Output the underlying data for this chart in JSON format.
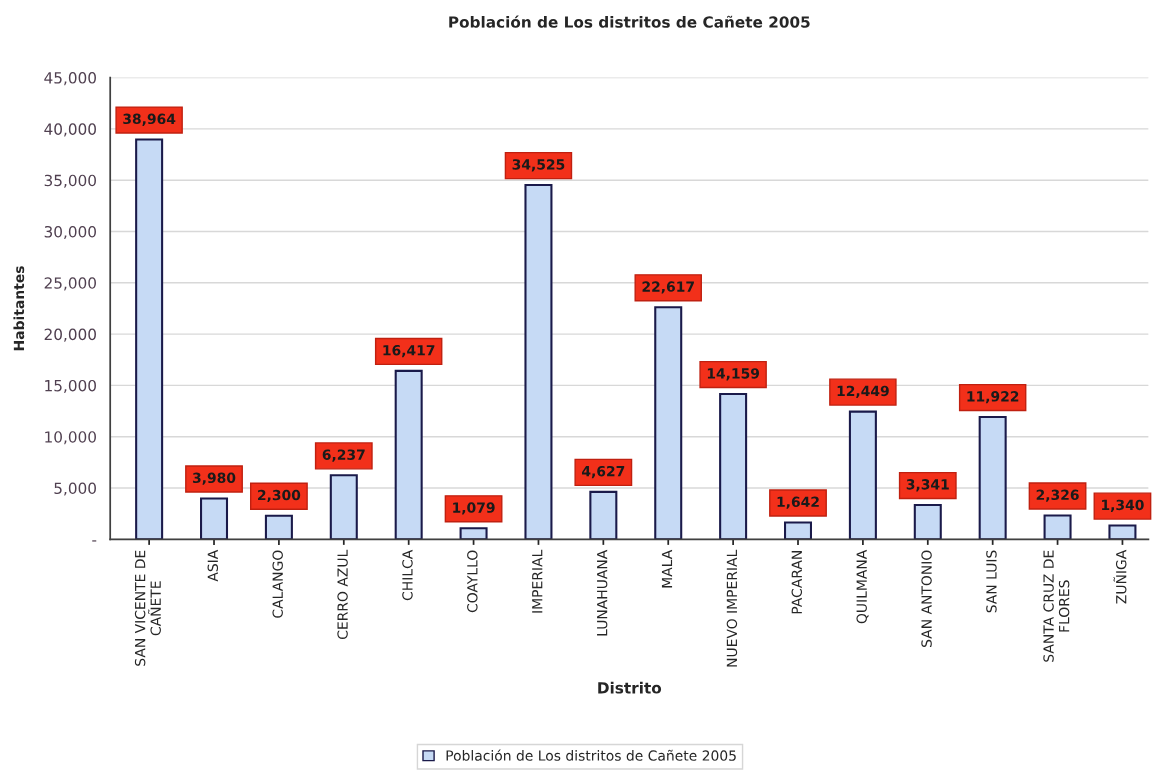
{
  "chart_data": {
    "type": "bar",
    "title": "Población de Los distritos de Cañete 2005",
    "xlabel": "Distrito",
    "ylabel": "Habitantes",
    "categories": [
      "SAN VICENTE DE\nCAÑETE",
      "ASIA",
      "CALANGO",
      "CERRO AZUL",
      "CHILCA",
      "COAYLLO",
      "IMPERIAL",
      "LUNAHUANA",
      "MALA",
      "NUEVO IMPERIAL",
      "PACARAN",
      "QUILMANA",
      "SAN ANTONIO",
      "SAN LUIS",
      "SANTA CRUZ DE\nFLORES",
      "ZUÑIGA"
    ],
    "series": [
      {
        "name": "Población de Los distritos de Cañete 2005",
        "color": "#c6daf5",
        "values": [
          38964,
          3980,
          2300,
          6237,
          16417,
          1079,
          34525,
          4627,
          22617,
          14159,
          1642,
          12449,
          3341,
          11922,
          2326,
          1340
        ],
        "value_labels": [
          "38,964",
          "3,980",
          "2,300",
          "6,237",
          "16,417",
          "1,079",
          "34,525",
          "4,627",
          "22,617",
          "14,159",
          "1,642",
          "12,449",
          "3,341",
          "11,922",
          "2,326",
          "1,340"
        ]
      }
    ],
    "ylim": [
      0,
      45000
    ],
    "yticks": [
      {
        "value": 0,
        "label": "-"
      },
      {
        "value": 5000,
        "label": "5,000"
      },
      {
        "value": 10000,
        "label": "10,000"
      },
      {
        "value": 15000,
        "label": "15,000"
      },
      {
        "value": 20000,
        "label": "20,000"
      },
      {
        "value": 25000,
        "label": "25,000"
      },
      {
        "value": 30000,
        "label": "30,000"
      },
      {
        "value": 35000,
        "label": "35,000"
      },
      {
        "value": 40000,
        "label": "40,000"
      },
      {
        "value": 45000,
        "label": "45,000"
      }
    ],
    "grid": "y",
    "legend": "bottom"
  }
}
